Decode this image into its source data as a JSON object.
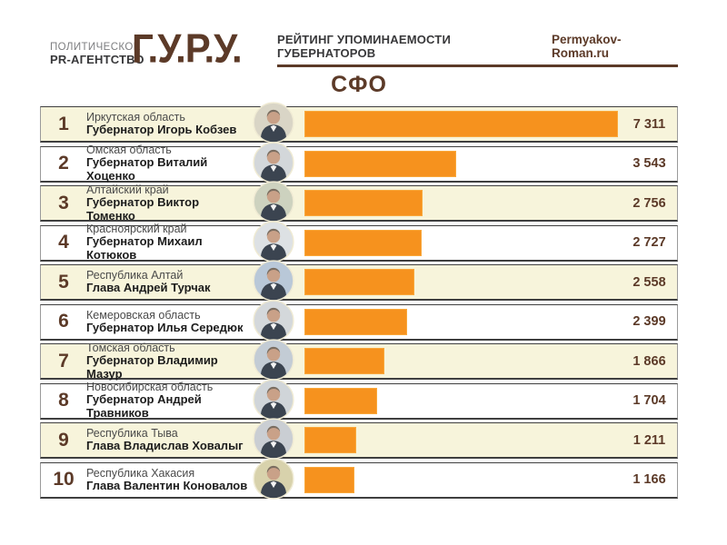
{
  "header": {
    "agency_line1": "ПОЛИТИЧЕСКОЕ",
    "agency_line2": "PR-АГЕНТСТВО",
    "logo": "Г.У.Р.У.",
    "title": "РЕЙТИНГ УПОМИНАЕМОСТИ ГУБЕРНАТОРОВ",
    "site": "Permyakov-Roman.ru"
  },
  "section_title": "СФО",
  "colors": {
    "brand_brown": "#5c3a28",
    "bar_orange": "#f6921e",
    "bar_border": "#f9a93d",
    "row_stripe_cream": "#f7f4db",
    "row_white": "#ffffff",
    "title_dark": "#38383a",
    "region_gray": "#4a4a4a"
  },
  "chart_data": {
    "type": "bar",
    "orientation": "horizontal",
    "title": "СФО",
    "subtitle": "РЕЙТИНГ УПОМИНАЕМОСТИ ГУБЕРНАТОРОВ",
    "legend": false,
    "grid": false,
    "value_axis_range": [
      0,
      7311
    ],
    "value_max": 7311,
    "rows": [
      {
        "rank": "1",
        "region": "Иркутская область",
        "name": "Губернатор Игорь Кобзев",
        "value": 7311,
        "value_label": "7 311",
        "photo_bg": "#d9d5c6"
      },
      {
        "rank": "2",
        "region": "Омская область",
        "name": "Губернатор Виталий Хоценко",
        "value": 3543,
        "value_label": "3 543",
        "photo_bg": "#d3d7da"
      },
      {
        "rank": "3",
        "region": "Алтайский край",
        "name": "Губернатор Виктор Томенко",
        "value": 2756,
        "value_label": "2 756",
        "photo_bg": "#cdd2bf"
      },
      {
        "rank": "4",
        "region": "Красноярский край",
        "name": "Губернатор Михаил Котюков",
        "value": 2727,
        "value_label": "2 727",
        "photo_bg": "#dde1e4"
      },
      {
        "rank": "5",
        "region": "Республика Алтай",
        "name": "Глава Андрей Турчак",
        "value": 2558,
        "value_label": "2 558",
        "photo_bg": "#b9c8d8"
      },
      {
        "rank": "6",
        "region": "Кемеровская область",
        "name": "Губернатор Илья Середюк",
        "value": 2399,
        "value_label": "2 399",
        "photo_bg": "#d4d8db"
      },
      {
        "rank": "7",
        "region": "Томская область",
        "name": "Губернатор Владимир Мазур",
        "value": 1866,
        "value_label": "1 866",
        "photo_bg": "#c3ccd5"
      },
      {
        "rank": "8",
        "region": "Новосибирская область",
        "name": "Губернатор Андрей Травников",
        "value": 1704,
        "value_label": "1 704",
        "photo_bg": "#d0d5d9"
      },
      {
        "rank": "9",
        "region": "Республика Тыва",
        "name": "Глава Владислав Ховалыг",
        "value": 1211,
        "value_label": "1 211",
        "photo_bg": "#caced3"
      },
      {
        "rank": "10",
        "region": "Республика Хакасия",
        "name": "Глава Валентин Коновалов",
        "value": 1166,
        "value_label": "1 166",
        "photo_bg": "#d8d2ac"
      }
    ]
  }
}
